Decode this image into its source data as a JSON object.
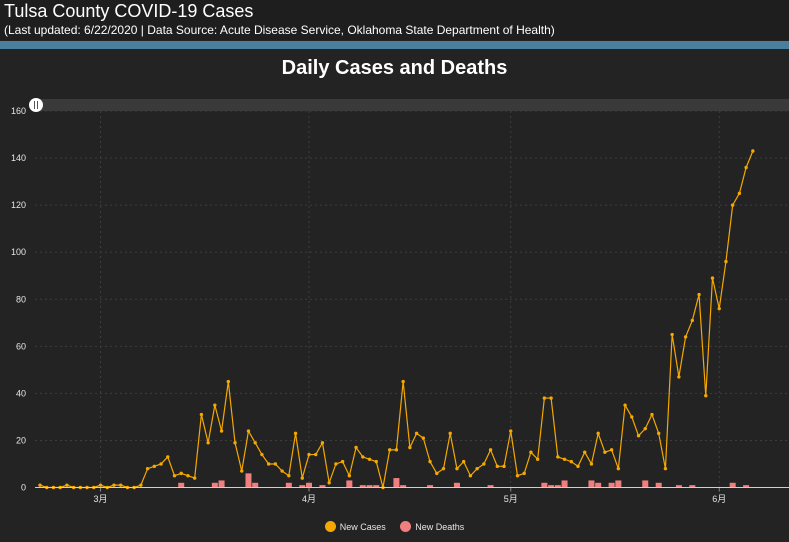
{
  "header": {
    "title": "Tulsa County COVID-19 Cases",
    "subtitle": "(Last updated: 6/22/2020 | Data Source: Acute Disease Service, Oklahoma State Department of Health)"
  },
  "colors": {
    "cases": "#f5a800",
    "deaths": "#f08080",
    "accent": "#4a7f9e",
    "background": "#232323"
  },
  "chart_data": {
    "type": "line",
    "title": "Daily Cases and Deaths",
    "xlabel": "",
    "ylabel": "",
    "ylim": [
      0,
      160
    ],
    "yticks": [
      0,
      20,
      40,
      60,
      80,
      100,
      120,
      140,
      160
    ],
    "grid": true,
    "legend_position": "bottom",
    "x_start_day": 1,
    "month_ticks": [
      {
        "label": "3月",
        "day": 10
      },
      {
        "label": "4月",
        "day": 41
      },
      {
        "label": "5月",
        "day": 71
      },
      {
        "label": "6月",
        "day": 102
      }
    ],
    "series": [
      {
        "name": "New Cases",
        "type": "line",
        "color": "#f5a800",
        "values": [
          1,
          0,
          0,
          0,
          1,
          0,
          0,
          0,
          0,
          1,
          0,
          1,
          1,
          0,
          0,
          1,
          8,
          9,
          10,
          13,
          5,
          6,
          5,
          4,
          31,
          19,
          35,
          24,
          45,
          19,
          7,
          24,
          19,
          14,
          10,
          10,
          7,
          5,
          23,
          4,
          14,
          14,
          19,
          2,
          10,
          11,
          5,
          17,
          13,
          12,
          11,
          0,
          16,
          16,
          45,
          17,
          23,
          21,
          11,
          6,
          8,
          23,
          8,
          11,
          5,
          8,
          10,
          16,
          9,
          9,
          24,
          5,
          6,
          15,
          12,
          38,
          38,
          13,
          12,
          11,
          9,
          15,
          10,
          23,
          15,
          16,
          8,
          35,
          30,
          22,
          25,
          31,
          23,
          8,
          65,
          47,
          64,
          71,
          82,
          39,
          89,
          76,
          96,
          120,
          125,
          136,
          143
        ]
      },
      {
        "name": "New Deaths",
        "type": "bar",
        "color": "#f08080",
        "values": [
          0,
          0,
          0,
          0,
          0,
          0,
          0,
          0,
          0,
          0,
          0,
          0,
          0,
          0,
          0,
          0,
          0,
          0,
          0,
          0,
          0,
          2,
          0,
          0,
          0,
          0,
          2,
          3,
          0,
          0,
          0,
          6,
          2,
          0,
          0,
          0,
          0,
          2,
          0,
          1,
          2,
          0,
          1,
          0,
          0,
          0,
          3,
          0,
          1,
          1,
          1,
          0,
          0,
          4,
          1,
          0,
          0,
          0,
          1,
          0,
          0,
          0,
          2,
          0,
          0,
          0,
          0,
          1,
          0,
          0,
          0,
          0,
          0,
          0,
          0,
          2,
          1,
          1,
          3,
          0,
          0,
          0,
          3,
          2,
          0,
          2,
          3,
          0,
          0,
          0,
          3,
          0,
          2,
          0,
          0,
          1,
          0,
          1,
          0,
          0,
          0,
          0,
          0,
          2,
          0,
          1,
          0
        ]
      }
    ]
  },
  "legend": {
    "items": [
      {
        "label": "New Cases",
        "color": "#f5a800"
      },
      {
        "label": "New Deaths",
        "color": "#f08080"
      }
    ]
  }
}
